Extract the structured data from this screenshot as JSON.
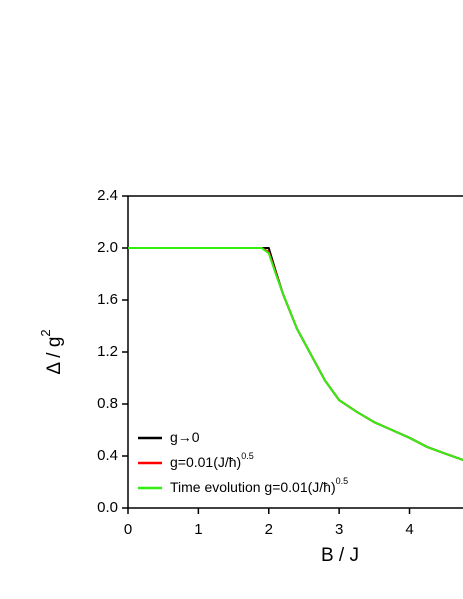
{
  "chart_data": {
    "type": "line",
    "xlabel": "B / J",
    "ylabel": "Δ / g",
    "ylabel_sup": "2",
    "x": [
      0,
      0.5,
      1,
      1.5,
      1.9,
      2.0,
      2.1,
      2.2,
      2.4,
      2.6,
      2.8,
      3.0,
      3.25,
      3.5,
      3.75,
      4.0,
      4.25,
      4.5,
      4.76
    ],
    "series": [
      {
        "name": "g→0",
        "color": "#000000",
        "values": [
          2.0,
          2.0,
          2.0,
          2.0,
          2.0,
          2.0,
          1.82,
          1.65,
          1.38,
          1.18,
          0.98,
          0.83,
          0.74,
          0.66,
          0.6,
          0.54,
          0.47,
          0.42,
          0.37
        ]
      },
      {
        "name": "g=0.01(J/ħ)",
        "name_sup": "0.5",
        "color": "#ff0000",
        "values": [
          2.0,
          2.0,
          2.0,
          2.0,
          2.0,
          1.97,
          1.81,
          1.65,
          1.38,
          1.18,
          0.98,
          0.83,
          0.74,
          0.66,
          0.6,
          0.54,
          0.47,
          0.42,
          0.37
        ]
      },
      {
        "name": "Time evolution g=0.01(J/ħ)",
        "name_sup": "0.5",
        "color": "#33ee11",
        "values": [
          2.0,
          2.0,
          2.0,
          2.0,
          2.0,
          1.96,
          1.8,
          1.65,
          1.38,
          1.18,
          0.98,
          0.83,
          0.74,
          0.66,
          0.6,
          0.54,
          0.47,
          0.42,
          0.37
        ]
      }
    ],
    "xlim": [
      0,
      4.76
    ],
    "ylim": [
      0,
      2.4
    ],
    "xticks": [
      0,
      1,
      2,
      3,
      4
    ],
    "yticks": [
      {
        "value": 0,
        "label": "0.0"
      },
      0.4,
      0.8,
      1.2,
      1.6,
      {
        "value": 2,
        "label": "2.0"
      },
      2.4
    ],
    "legend": "lower-left"
  }
}
